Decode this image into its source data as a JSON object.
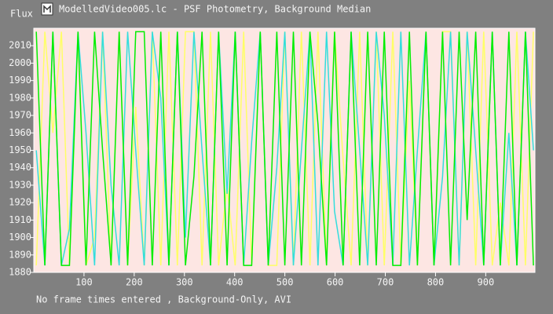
{
  "chart_data": {
    "type": "line",
    "title": "ModelledVideo005.lc - PSF Photometry, Background Median",
    "ylabel": "Flux",
    "caption": "No frame times entered , Background-Only, AVI",
    "plot_background": "#fde6e3",
    "xlim": [
      0,
      998
    ],
    "xticks": [
      100,
      200,
      300,
      400,
      500,
      600,
      700,
      800,
      900
    ],
    "ylim": [
      1880,
      2020
    ],
    "yticks": [
      1880,
      1890,
      1900,
      1910,
      1920,
      1930,
      1940,
      1950,
      1960,
      1970,
      1980,
      1990,
      2000,
      2010
    ],
    "x": [
      5,
      22,
      38,
      55,
      71,
      88,
      104,
      121,
      137,
      154,
      170,
      187,
      203,
      220,
      236,
      253,
      269,
      286,
      302,
      319,
      335,
      352,
      368,
      385,
      401,
      418,
      434,
      451,
      467,
      484,
      500,
      517,
      533,
      550,
      566,
      583,
      599,
      616,
      632,
      649,
      665,
      682,
      698,
      715,
      731,
      748,
      764,
      781,
      797,
      814,
      830,
      847,
      863,
      880,
      896,
      913,
      929,
      946,
      962,
      979,
      995
    ],
    "series": [
      {
        "color": "#ffff66",
        "values": [
          1884,
          2018,
          1960,
          2018,
          1884,
          2018,
          1884,
          1900,
          2018,
          1884,
          2018,
          1884,
          1975,
          1884,
          2018,
          1884,
          2018,
          1884,
          2018,
          2018,
          1884,
          2018,
          1884,
          1930,
          1884,
          2018,
          1884,
          2018,
          1884,
          1884,
          2018,
          1884,
          2018,
          1884,
          2018,
          1884,
          2018,
          1945,
          1884,
          2018,
          1884,
          2018,
          1884,
          2018,
          1884,
          1990,
          1884,
          2018,
          1884,
          2018,
          2018,
          1884,
          2018,
          1884,
          2018,
          1884,
          1920,
          1884,
          2018,
          1884,
          2018
        ]
      },
      {
        "color": "#33dddd",
        "values": [
          1950,
          1884,
          2018,
          1884,
          1905,
          2018,
          1960,
          1884,
          2018,
          1930,
          1884,
          2018,
          1950,
          1884,
          2018,
          1980,
          1884,
          2018,
          1900,
          2018,
          1950,
          1884,
          2018,
          1925,
          2018,
          1884,
          1955,
          2018,
          1884,
          1940,
          2018,
          1884,
          1950,
          2018,
          1884,
          2018,
          1915,
          1884,
          2018,
          1950,
          1884,
          2018,
          1970,
          1884,
          2018,
          1884,
          1950,
          2018,
          1884,
          1935,
          2018,
          1884,
          2018,
          1950,
          1884,
          2018,
          1884,
          1960,
          1884,
          2018,
          1950
        ]
      },
      {
        "color": "#00ee00",
        "values": [
          2018,
          1884,
          2018,
          1884,
          1884,
          2018,
          1884,
          2018,
          1950,
          1884,
          2018,
          1884,
          2018,
          2018,
          1884,
          2018,
          1884,
          2018,
          1884,
          1935,
          2018,
          1884,
          2018,
          1884,
          2018,
          1884,
          1884,
          2018,
          1884,
          2018,
          1884,
          2018,
          1884,
          2018,
          1965,
          1884,
          2018,
          1884,
          2018,
          1884,
          2018,
          1884,
          2018,
          1884,
          1884,
          2018,
          1884,
          2018,
          1884,
          2018,
          1884,
          2018,
          1910,
          2018,
          1884,
          2018,
          1884,
          2018,
          1884,
          2018,
          1884
        ]
      }
    ]
  }
}
